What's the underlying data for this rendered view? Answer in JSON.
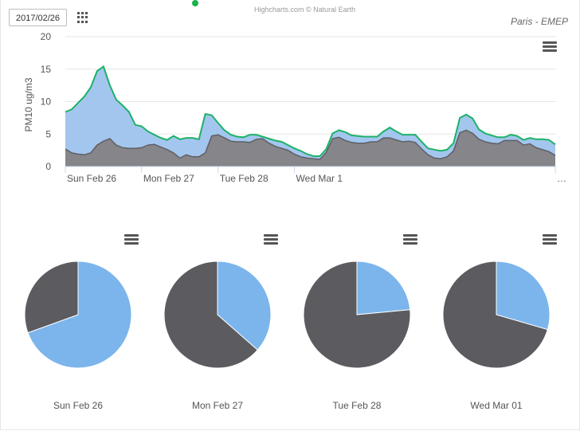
{
  "header": {
    "date_value": "2017/02/26",
    "credits": "Highcharts.com © Natural Earth",
    "title": "Paris - EMEP"
  },
  "colors": {
    "area_fill": "#a3c6ee",
    "area_line": "#1db267",
    "dark_area": "#85858a",
    "dark_line": "#5f5f64",
    "pie_light": "#7cb5ec",
    "pie_dark": "#5b5b60",
    "status_dot": "#19b34b"
  },
  "icons": [
    "grid-icon",
    "menu-icon"
  ],
  "chart_data": [
    {
      "type": "area",
      "title": "Paris - EMEP",
      "ylabel": "PM10 ug/m3",
      "ylim": [
        0,
        20
      ],
      "yticks": [
        "0",
        "5",
        "10",
        "15",
        "20"
      ],
      "xticks": [
        "Sun Feb 26",
        "Mon Feb 27",
        "Tue Feb 28",
        "Wed Mar 1",
        "…"
      ],
      "x_hours_per_point": 2,
      "series": [
        {
          "values": [
            8.4,
            8.8,
            9.8,
            10.8,
            12.2,
            14.7,
            15.4,
            12.5,
            10.3,
            9.4,
            8.4,
            6.4,
            6.2,
            5.4,
            4.9,
            4.4,
            4.1,
            4.7,
            4.2,
            4.4,
            4.4,
            4.2,
            8.1,
            7.9,
            6.7,
            5.6,
            4.9,
            4.6,
            4.5,
            4.9,
            4.9,
            4.6,
            4.3,
            4.0,
            3.8,
            3.3,
            2.8,
            2.4,
            1.9,
            1.6,
            1.6,
            2.7,
            5.1,
            5.6,
            5.3,
            4.8,
            4.7,
            4.6,
            4.6,
            4.6,
            5.4,
            6.0,
            5.4,
            4.9,
            4.9,
            4.9,
            3.8,
            2.8,
            2.6,
            2.4,
            2.6,
            3.6,
            7.5,
            8.0,
            7.4,
            5.7,
            5.1,
            4.8,
            4.5,
            4.5,
            4.9,
            4.7,
            4.1,
            4.4,
            4.2,
            4.2,
            4.1,
            3.4
          ]
        },
        {
          "values": [
            2.7,
            2.1,
            1.9,
            1.8,
            2.1,
            3.3,
            3.9,
            4.3,
            3.3,
            2.9,
            2.8,
            2.8,
            2.9,
            3.3,
            3.4,
            3.0,
            2.6,
            2.1,
            1.3,
            1.8,
            1.5,
            1.5,
            2.1,
            4.7,
            4.9,
            4.4,
            3.9,
            3.8,
            3.8,
            3.7,
            4.2,
            4.3,
            3.6,
            3.1,
            2.8,
            2.5,
            1.9,
            1.5,
            1.3,
            1.2,
            1.1,
            2.2,
            4.3,
            4.5,
            4.0,
            3.7,
            3.6,
            3.6,
            3.8,
            3.8,
            4.4,
            4.4,
            4.1,
            3.8,
            3.9,
            3.7,
            2.7,
            1.8,
            1.3,
            1.2,
            1.5,
            2.4,
            5.2,
            5.6,
            5.1,
            4.2,
            3.8,
            3.6,
            3.5,
            4.0,
            4.0,
            4.0,
            3.3,
            3.5,
            2.9,
            2.6,
            2.3,
            1.7
          ]
        }
      ]
    },
    {
      "type": "pie",
      "title": "Sun Feb 26",
      "slices": [
        {
          "value": 69.5,
          "color": "#7cb5ec"
        },
        {
          "value": 30.5,
          "color": "#5b5b60"
        }
      ]
    },
    {
      "type": "pie",
      "title": "Mon Feb 27",
      "slices": [
        {
          "value": 36.5,
          "color": "#7cb5ec"
        },
        {
          "value": 63.5,
          "color": "#5b5b60"
        }
      ]
    },
    {
      "type": "pie",
      "title": "Tue Feb 28",
      "slices": [
        {
          "value": 23.5,
          "color": "#7cb5ec"
        },
        {
          "value": 76.5,
          "color": "#5b5b60"
        }
      ]
    },
    {
      "type": "pie",
      "title": "Wed Mar 01",
      "slices": [
        {
          "value": 29.5,
          "color": "#7cb5ec"
        },
        {
          "value": 70.5,
          "color": "#5b5b60"
        }
      ]
    }
  ]
}
